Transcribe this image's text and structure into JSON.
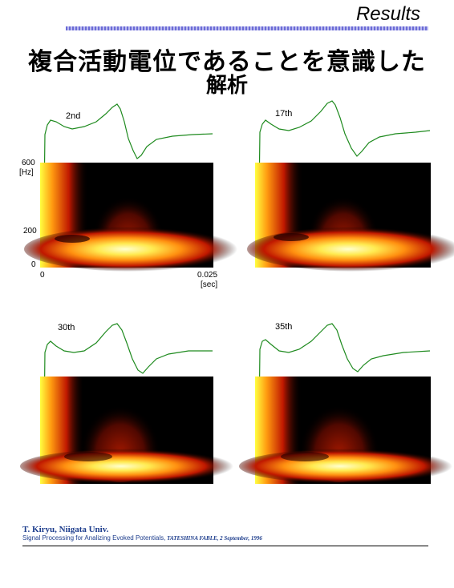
{
  "header": {
    "word": "Results"
  },
  "title": {
    "line1": "複合活動電位であることを意識した",
    "line2": "解析"
  },
  "panels": [
    {
      "label": "2nd"
    },
    {
      "label": "17th"
    },
    {
      "label": "30th"
    },
    {
      "label": "35th"
    }
  ],
  "axes": {
    "y_tick_top": "600",
    "y_unit": "[Hz]",
    "y_tick_mid": "200",
    "y_tick_zero": "0",
    "x_tick_start": "0",
    "x_tick_end": "0.025",
    "x_unit": "[sec]"
  },
  "footer": {
    "author": "T. Kiryu, Niigata Univ.",
    "talk": "Signal Processing for Analizing Evoked Potentials,",
    "event": " TATESHINA FABLE, 2 September, 1996"
  },
  "colors": {
    "header_rule": "#6b6bd6",
    "waveform": "#1e8a1e",
    "footer_text": "#1c3c8c"
  }
}
